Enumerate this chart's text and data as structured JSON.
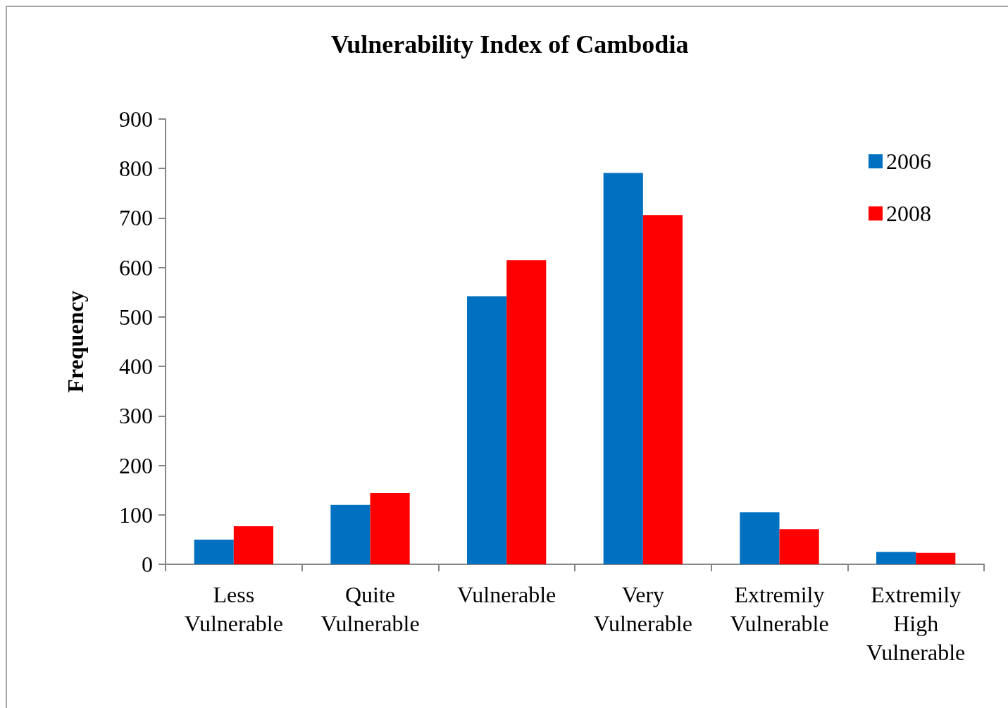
{
  "chart_data": {
    "type": "bar",
    "title": "Vulnerability Index of Cambodia",
    "ylabel": "Frequency",
    "categories": [
      "Less\nVulnerable",
      "Quite\nVulnerable",
      "Vulnerable",
      "Very\nVulnerable",
      "Extremily\nVulnerable",
      "Extremily\nHigh\nVulnerable"
    ],
    "series": [
      {
        "name": "2006",
        "color": "#0070c0",
        "values": [
          50,
          120,
          542,
          791,
          105,
          25
        ]
      },
      {
        "name": "2008",
        "color": "#ff0000",
        "values": [
          77,
          144,
          615,
          706,
          71,
          23
        ]
      }
    ],
    "ylim": [
      0,
      900
    ],
    "yticks": [
      0,
      100,
      200,
      300,
      400,
      500,
      600,
      700,
      800,
      900
    ],
    "grid": false,
    "legend": "top right"
  }
}
